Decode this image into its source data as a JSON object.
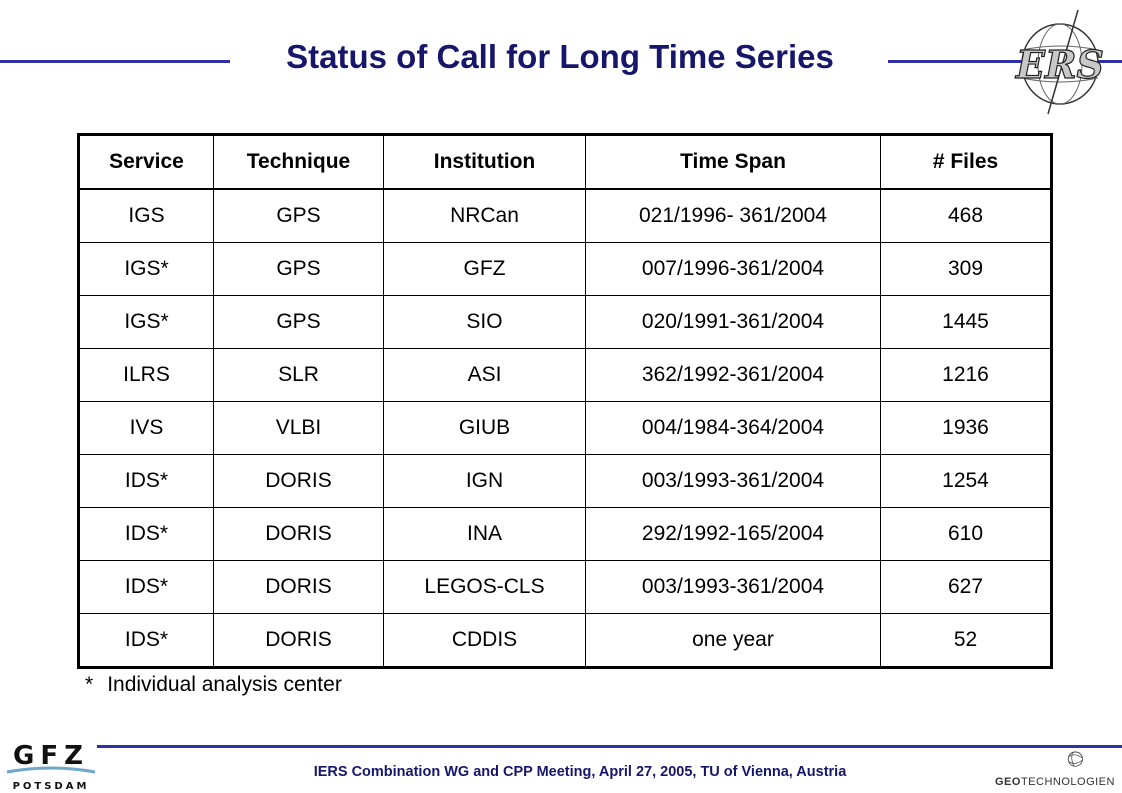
{
  "header": {
    "title": "Status of Call for Long Time Series",
    "logo_text": "ERS",
    "logo": "ers-globe-logo"
  },
  "table": {
    "columns": [
      "Service",
      "Technique",
      "Institution",
      "Time Span",
      "# Files"
    ],
    "rows": [
      [
        "IGS",
        "GPS",
        "NRCan",
        "021/1996- 361/2004",
        "468"
      ],
      [
        "IGS*",
        "GPS",
        "GFZ",
        "007/1996-361/2004",
        "309"
      ],
      [
        "IGS*",
        "GPS",
        "SIO",
        "020/1991-361/2004",
        "1445"
      ],
      [
        "ILRS",
        "SLR",
        "ASI",
        "362/1992-361/2004",
        "1216"
      ],
      [
        "IVS",
        "VLBI",
        "GIUB",
        "004/1984-364/2004",
        "1936"
      ],
      [
        "IDS*",
        "DORIS",
        "IGN",
        "003/1993-361/2004",
        "1254"
      ],
      [
        "IDS*",
        "DORIS",
        "INA",
        "292/1992-165/2004",
        "610"
      ],
      [
        "IDS*",
        "DORIS",
        "LEGOS-CLS",
        "003/1993-361/2004",
        "627"
      ],
      [
        "IDS*",
        "DORIS",
        "CDDIS",
        "one year",
        "52"
      ]
    ]
  },
  "footnote": {
    "marker": "*",
    "text": "Individual analysis center"
  },
  "footer": {
    "text": "IERS Combination  WG and CPP Meeting,  April 27, 2005,  TU of Vienna,  Austria",
    "gfz_logo_text": "GFZ",
    "gfz_logo_subtext": "POTSDAM",
    "geo_logo_bold": "GEO",
    "geo_logo_rest": "TECHNOLOGIEN"
  },
  "colors": {
    "accent_rule": "#2f2fa8",
    "title_color": "#16166b"
  }
}
